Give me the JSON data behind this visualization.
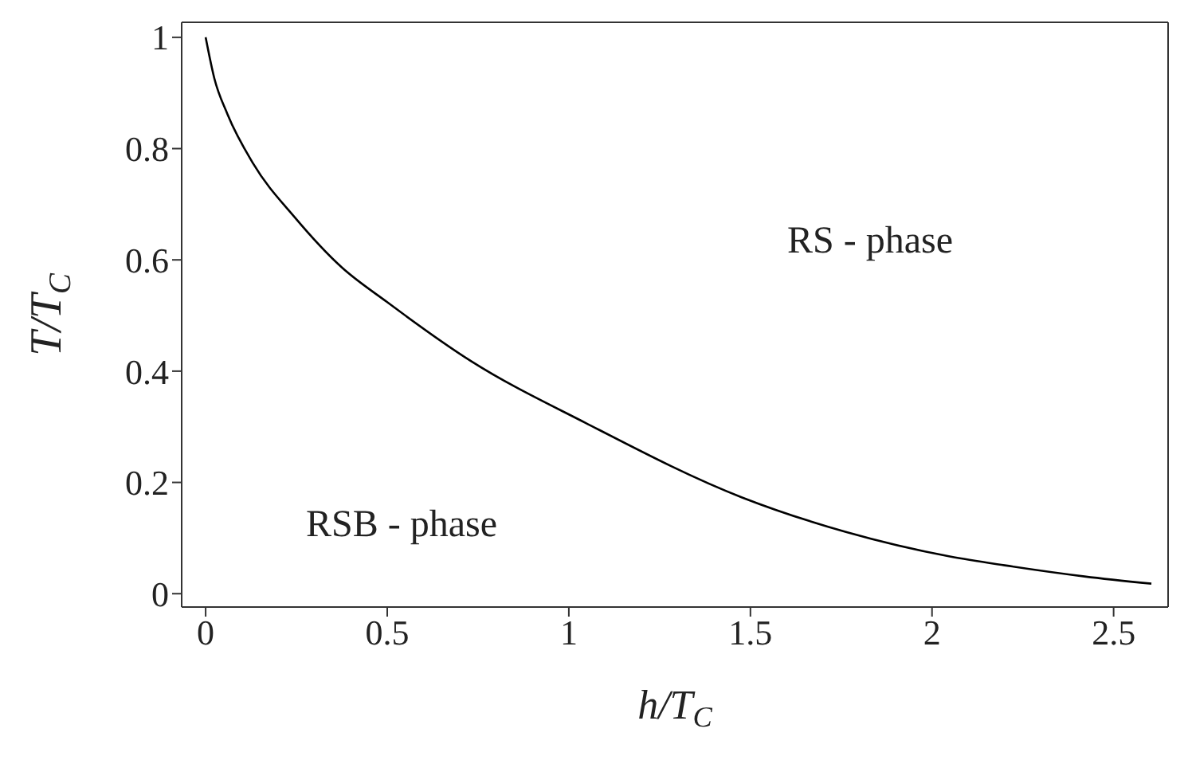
{
  "chart_data": {
    "type": "line",
    "xlabel": "h/T$_{C}$",
    "ylabel": "T/T$_{C}$",
    "x": [
      0,
      0.024,
      0.06,
      0.131,
      0.246,
      0.374,
      0.5,
      0.731,
      1.046,
      1.477,
      1.763,
      2.049,
      2.2,
      2.42,
      2.604
    ],
    "series": [
      {
        "color": "#000000",
        "values": [
          1.0,
          0.926,
          0.862,
          0.773,
          0.676,
          0.587,
          0.524,
          0.418,
          0.307,
          0.173,
          0.111,
          0.067,
          0.051,
          0.031,
          0.018
        ]
      }
    ],
    "xlim": [
      -0.066,
      2.65
    ],
    "ylim": [
      -0.024,
      1.027
    ],
    "xticks": [
      0,
      0.5,
      1,
      1.5,
      2,
      2.5
    ],
    "yticks": [
      0,
      0.2,
      0.4,
      0.6,
      0.8,
      1
    ],
    "grid": false,
    "legend": false,
    "marker": "none",
    "line_style": "solid",
    "annotations": [
      "RS - phase",
      "RSB - phase"
    ]
  }
}
